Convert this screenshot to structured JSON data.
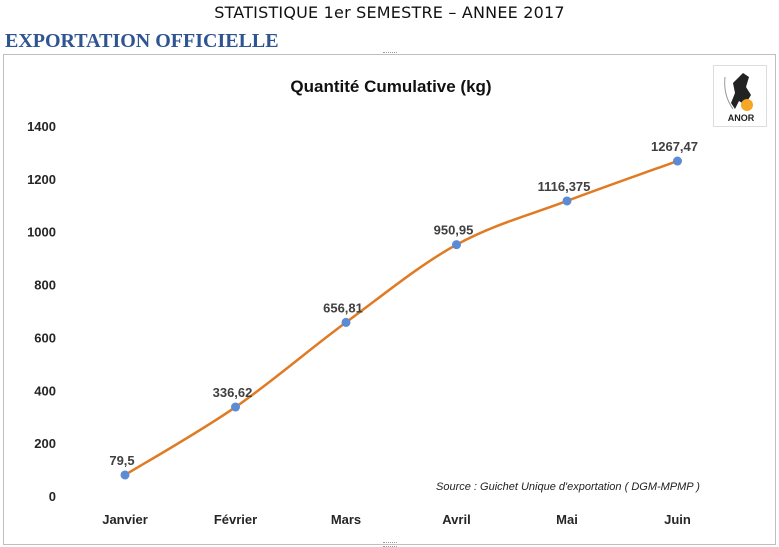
{
  "header": {
    "title": "STATISTIQUE  1er SEMESTRE   – ANNEE  2017",
    "section": "EXPORTATION OFFICIELLE"
  },
  "logo": {
    "text": "ANOR",
    "icon": "anor-logo-icon"
  },
  "chart_data": {
    "type": "line",
    "title": "Quantité Cumulative    (kg)",
    "categories": [
      "Janvier",
      "Février",
      "Mars",
      "Avril",
      "Mai",
      "Juin"
    ],
    "series": [
      {
        "values": [
          79.5,
          336.62,
          656.81,
          950.95,
          1116.375,
          1267.47
        ],
        "labels": [
          "79,5",
          "336,62",
          "656,81",
          "950,95",
          "1116,375",
          "1267,47"
        ]
      }
    ],
    "yticks": [
      "0",
      "200",
      "400",
      "600",
      "800",
      "1000",
      "1200",
      "1400"
    ],
    "ylim": [
      0,
      1400
    ],
    "grid": false,
    "legend": "none",
    "line_color": "#e07b24",
    "marker_color": "#5b8bd4",
    "source": "Source :   Guichet Unique d'exportation ( DGM-MPMP )"
  }
}
